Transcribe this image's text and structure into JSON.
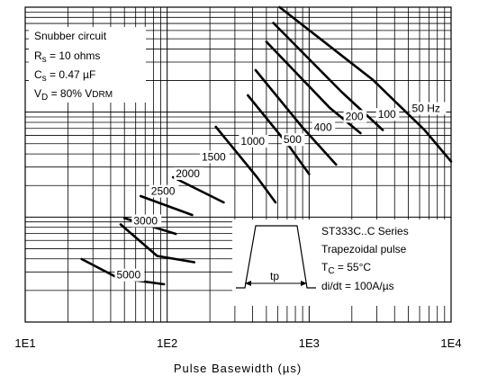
{
  "chart_data": {
    "type": "line",
    "x_scale": "log",
    "xlim": [
      10,
      10000
    ],
    "xlabel": "Pulse Basewidth (µs)",
    "x_tick_labels": [
      "1E1",
      "1E2",
      "1E3",
      "1E4"
    ],
    "grid": true,
    "conditions": [
      {
        "lines": [
          "Snubber circuit"
        ]
      },
      {
        "lines": [
          "R",
          "s",
          " = 10 ohms"
        ]
      },
      {
        "lines": [
          "C",
          "s",
          " = 0.47 µF"
        ]
      },
      {
        "lines": [
          "V",
          "D",
          " = 80% V",
          "DRM"
        ]
      }
    ],
    "series_label": "ST333C..C Series",
    "pulse_text": "Trapezoidal pulse",
    "tc_text": [
      "T",
      "C",
      " = 55°C"
    ],
    "didt_text": "di/dt = 100A/µs",
    "pulse_width_label": "tp",
    "series": [
      {
        "name": "50 Hz",
        "label": "50 Hz",
        "points": [
          [
            620,
            0
          ],
          [
            2800,
            0.23
          ],
          [
            6500,
            0.39
          ],
          [
            10000,
            0.49
          ]
        ]
      },
      {
        "name": "100",
        "label": "100",
        "points": [
          [
            560,
            0.05
          ],
          [
            1700,
            0.27
          ],
          [
            3300,
            0.39
          ]
        ]
      },
      {
        "name": "200",
        "label": "200",
        "points": [
          [
            500,
            0.11
          ],
          [
            1400,
            0.32
          ],
          [
            2300,
            0.4
          ]
        ]
      },
      {
        "name": "400",
        "label": "400",
        "points": [
          [
            420,
            0.2
          ],
          [
            890,
            0.38
          ],
          [
            1550,
            0.5
          ]
        ]
      },
      {
        "name": "500",
        "label": "500",
        "points": [
          [
            370,
            0.28
          ],
          [
            720,
            0.44
          ],
          [
            1000,
            0.53
          ]
        ]
      },
      {
        "name": "1000",
        "label": "1000",
        "points": [
          [
            220,
            0.38
          ],
          [
            430,
            0.54
          ],
          [
            580,
            0.62
          ]
        ]
      },
      {
        "name": "1500",
        "label": "1500",
        "points": [
          [
            110,
            0.54
          ],
          [
            250,
            0.62
          ]
        ]
      },
      {
        "name": "2000",
        "label": "2000",
        "points": [
          [
            65,
            0.6
          ],
          [
            150,
            0.66
          ]
        ]
      },
      {
        "name": "2500",
        "label": "2500",
        "points": [
          [
            50,
            0.67
          ],
          [
            115,
            0.72
          ]
        ]
      },
      {
        "name": "3000",
        "label": "3000",
        "points": [
          [
            47,
            0.69
          ],
          [
            85,
            0.79
          ],
          [
            155,
            0.81
          ]
        ]
      },
      {
        "name": "5000",
        "label": "5000",
        "points": [
          [
            25,
            0.8
          ],
          [
            45,
            0.86
          ],
          [
            95,
            0.88
          ]
        ]
      }
    ]
  }
}
